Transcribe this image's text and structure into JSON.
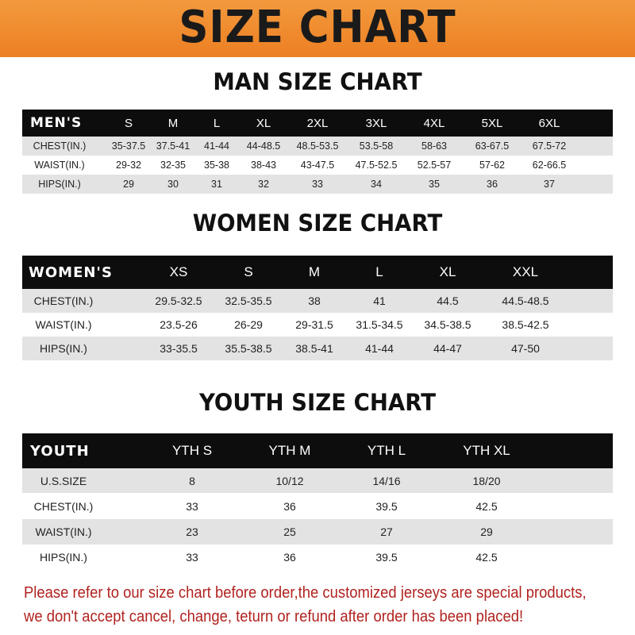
{
  "banner": {
    "title": "SIZE CHART",
    "color": "#ef8a2e"
  },
  "men": {
    "title": "MAN SIZE CHART",
    "header": [
      "MEN'S",
      "S",
      "M",
      "L",
      "XL",
      "2XL",
      "3XL",
      "4XL",
      "5XL",
      "6XL"
    ],
    "rows": [
      [
        "CHEST(IN.)",
        "35-37.5",
        "37.5-41",
        "41-44",
        "44-48.5",
        "48.5-53.5",
        "53.5-58",
        "58-63",
        "63-67.5",
        "67.5-72"
      ],
      [
        "WAIST(IN.)",
        "29-32",
        "32-35",
        "35-38",
        "38-43",
        "43-47.5",
        "47.5-52.5",
        "52.5-57",
        "57-62",
        "62-66.5"
      ],
      [
        "HIPS(IN.)",
        "29",
        "30",
        "31",
        "32",
        "33",
        "34",
        "35",
        "36",
        "37"
      ]
    ]
  },
  "women": {
    "title": "WOMEN SIZE CHART",
    "header": [
      "WOMEN'S",
      "XS",
      "S",
      "M",
      "L",
      "XL",
      "XXL"
    ],
    "rows": [
      [
        "CHEST(IN.)",
        "29.5-32.5",
        "32.5-35.5",
        "38",
        "41",
        "44.5",
        "44.5-48.5"
      ],
      [
        "WAIST(IN.)",
        "23.5-26",
        "26-29",
        "29-31.5",
        "31.5-34.5",
        "34.5-38.5",
        "38.5-42.5"
      ],
      [
        "HIPS(IN.)",
        "33-35.5",
        "35.5-38.5",
        "38.5-41",
        "41-44",
        "44-47",
        "47-50"
      ]
    ]
  },
  "youth": {
    "title": "YOUTH SIZE CHART",
    "header": [
      "YOUTH",
      "YTH S",
      "YTH M",
      "YTH L",
      "YTH XL"
    ],
    "rows": [
      [
        "U.S.SIZE",
        "8",
        "10/12",
        "14/16",
        "18/20"
      ],
      [
        "CHEST(IN.)",
        "33",
        "36",
        "39.5",
        "42.5"
      ],
      [
        "WAIST(IN.)",
        "23",
        "25",
        "27",
        "29"
      ],
      [
        "HIPS(IN.)",
        "33",
        "36",
        "39.5",
        "42.5"
      ]
    ]
  },
  "notice": {
    "line1": "Please refer to our size chart before order,the customized jerseys are special products,",
    "line2": "we don't accept cancel, change, teturn or refund after order has been placed!",
    "color": "#b0231f"
  }
}
